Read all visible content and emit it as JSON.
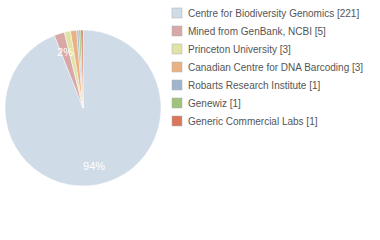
{
  "chart_data": {
    "type": "pie",
    "categories": [
      "Centre for Biodiversity Genomics [221]",
      "Mined from GenBank, NCBI [5]",
      "Princeton University [3]",
      "Canadian Centre for DNA Barcoding [3]",
      "Robarts Research Institute [1]",
      "Genewiz [1]",
      "Generic Commercial Labs [1]"
    ],
    "values": [
      94.04,
      2.13,
      1.28,
      1.28,
      0.43,
      0.43,
      0.43
    ],
    "value_labels": [
      "94%",
      "2%",
      null,
      null,
      null,
      null,
      null
    ],
    "colors": [
      "#cfdbe7",
      "#d8a7a7",
      "#e0e2a8",
      "#e8b283",
      "#9fb5cc",
      "#a0c27c",
      "#d9765c"
    ],
    "data_labels": true,
    "legend": "right"
  }
}
